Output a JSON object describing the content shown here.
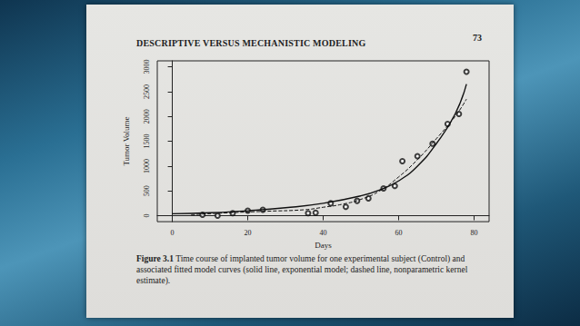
{
  "page": {
    "header": "DESCRIPTIVE VERSUS MECHANISTIC MODELING",
    "page_number": "73",
    "caption_label": "Figure 3.1",
    "caption": "Time course of implanted tumor volume for one experimental subject (Control) and associated fitted model curves (solid line, exponential model; dashed line, nonparametric kernel estimate)."
  },
  "chart_data": {
    "type": "scatter",
    "x_label": "Days",
    "y_label": "Tumor Volume",
    "xlim": [
      -4,
      84
    ],
    "xticks": [
      0,
      20,
      40,
      60,
      80
    ],
    "ylim": [
      -120,
      3120
    ],
    "yticks": [
      0,
      500,
      1000,
      1500,
      2000,
      2500,
      3000
    ],
    "grid": false,
    "color": "#111111",
    "series": [
      {
        "type": "scatter",
        "marker": "open circle",
        "x": [
          8,
          12,
          16,
          20,
          24,
          36,
          38,
          42,
          46,
          49,
          52,
          56,
          59,
          61,
          65,
          69,
          73,
          76,
          78
        ],
        "values": [
          20,
          0,
          50,
          100,
          120,
          50,
          60,
          250,
          180,
          300,
          350,
          550,
          600,
          1100,
          1200,
          1450,
          1850,
          2050,
          2900
        ]
      },
      {
        "type": "line",
        "line_style": "solid",
        "x": [
          0,
          10,
          20,
          30,
          40,
          50,
          55,
          60,
          65,
          70,
          75,
          78
        ],
        "values": [
          40,
          60,
          100,
          160,
          250,
          400,
          520,
          700,
          1000,
          1450,
          2050,
          2650
        ]
      },
      {
        "type": "line",
        "line_style": "dashed",
        "x": [
          5,
          15,
          25,
          35,
          40,
          45,
          50,
          55,
          60,
          65,
          70,
          75,
          78
        ],
        "values": [
          20,
          60,
          90,
          120,
          170,
          230,
          330,
          500,
          780,
          1130,
          1550,
          2000,
          2350
        ]
      }
    ]
  }
}
